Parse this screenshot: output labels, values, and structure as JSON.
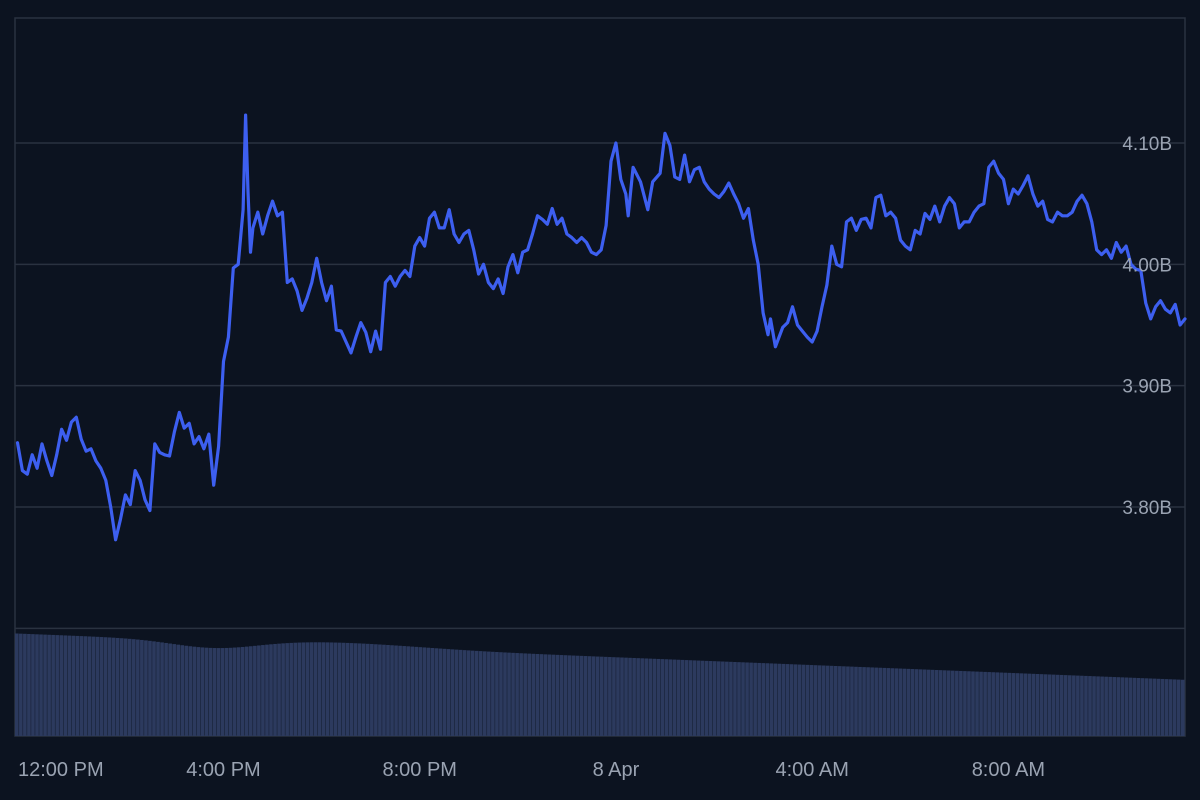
{
  "chart_data": {
    "type": "line",
    "title": "",
    "xlabel": "",
    "ylabel": "",
    "colors": {
      "background": "#0c1320",
      "line": "#3d5ff0",
      "volume": "#2c3a5e",
      "grid": "#2a3240",
      "axis_text": "#9aa3b2"
    },
    "grid": true,
    "y_axis_side": "right",
    "x_range_hours": [
      11.75,
      35.6
    ],
    "ylim": [
      3.7,
      4.2
    ],
    "y_ticks": [
      {
        "value": 3.8,
        "label": "3.80B"
      },
      {
        "value": 3.9,
        "label": "3.90B"
      },
      {
        "value": 4.0,
        "label": "4.00B"
      },
      {
        "value": 4.1,
        "label": "4.10B"
      }
    ],
    "x_ticks": [
      {
        "hours": 12,
        "label": "12:00 PM"
      },
      {
        "hours": 16,
        "label": "4:00 PM"
      },
      {
        "hours": 20,
        "label": "8:00 PM"
      },
      {
        "hours": 24,
        "label": "8 Apr"
      },
      {
        "hours": 28,
        "label": "4:00 AM"
      },
      {
        "hours": 32,
        "label": "8:00 AM"
      }
    ],
    "series": [
      {
        "unit": "B",
        "points": [
          [
            11.8,
            3.853
          ],
          [
            11.9,
            3.83
          ],
          [
            12.0,
            3.827
          ],
          [
            12.1,
            3.843
          ],
          [
            12.2,
            3.832
          ],
          [
            12.3,
            3.852
          ],
          [
            12.4,
            3.838
          ],
          [
            12.5,
            3.826
          ],
          [
            12.6,
            3.843
          ],
          [
            12.7,
            3.864
          ],
          [
            12.8,
            3.855
          ],
          [
            12.9,
            3.87
          ],
          [
            13.0,
            3.874
          ],
          [
            13.1,
            3.856
          ],
          [
            13.2,
            3.846
          ],
          [
            13.3,
            3.848
          ],
          [
            13.4,
            3.838
          ],
          [
            13.5,
            3.832
          ],
          [
            13.6,
            3.822
          ],
          [
            13.7,
            3.8
          ],
          [
            13.8,
            3.773
          ],
          [
            13.9,
            3.79
          ],
          [
            14.0,
            3.81
          ],
          [
            14.1,
            3.802
          ],
          [
            14.2,
            3.83
          ],
          [
            14.3,
            3.822
          ],
          [
            14.4,
            3.806
          ],
          [
            14.5,
            3.797
          ],
          [
            14.6,
            3.852
          ],
          [
            14.7,
            3.845
          ],
          [
            14.8,
            3.843
          ],
          [
            14.9,
            3.842
          ],
          [
            15.0,
            3.862
          ],
          [
            15.1,
            3.878
          ],
          [
            15.2,
            3.865
          ],
          [
            15.3,
            3.869
          ],
          [
            15.4,
            3.852
          ],
          [
            15.5,
            3.858
          ],
          [
            15.6,
            3.848
          ],
          [
            15.7,
            3.86
          ],
          [
            15.8,
            3.818
          ],
          [
            15.9,
            3.85
          ],
          [
            16.0,
            3.92
          ],
          [
            16.1,
            3.94
          ],
          [
            16.2,
            3.997
          ],
          [
            16.3,
            4.0
          ],
          [
            16.4,
            4.045
          ],
          [
            16.45,
            4.123
          ],
          [
            16.5,
            4.06
          ],
          [
            16.55,
            4.01
          ],
          [
            16.6,
            4.03
          ],
          [
            16.7,
            4.043
          ],
          [
            16.8,
            4.025
          ],
          [
            16.9,
            4.04
          ],
          [
            17.0,
            4.052
          ],
          [
            17.1,
            4.04
          ],
          [
            17.2,
            4.043
          ],
          [
            17.3,
            3.985
          ],
          [
            17.4,
            3.988
          ],
          [
            17.5,
            3.978
          ],
          [
            17.6,
            3.962
          ],
          [
            17.7,
            3.972
          ],
          [
            17.8,
            3.985
          ],
          [
            17.9,
            4.005
          ],
          [
            18.0,
            3.985
          ],
          [
            18.1,
            3.97
          ],
          [
            18.2,
            3.982
          ],
          [
            18.3,
            3.946
          ],
          [
            18.4,
            3.945
          ],
          [
            18.5,
            3.936
          ],
          [
            18.6,
            3.927
          ],
          [
            18.7,
            3.94
          ],
          [
            18.8,
            3.952
          ],
          [
            18.9,
            3.944
          ],
          [
            19.0,
            3.928
          ],
          [
            19.1,
            3.945
          ],
          [
            19.2,
            3.93
          ],
          [
            19.3,
            3.985
          ],
          [
            19.4,
            3.99
          ],
          [
            19.5,
            3.982
          ],
          [
            19.6,
            3.99
          ],
          [
            19.7,
            3.995
          ],
          [
            19.8,
            3.99
          ],
          [
            19.9,
            4.015
          ],
          [
            20.0,
            4.022
          ],
          [
            20.1,
            4.015
          ],
          [
            20.2,
            4.038
          ],
          [
            20.3,
            4.043
          ],
          [
            20.4,
            4.03
          ],
          [
            20.5,
            4.03
          ],
          [
            20.6,
            4.045
          ],
          [
            20.7,
            4.025
          ],
          [
            20.8,
            4.018
          ],
          [
            20.9,
            4.025
          ],
          [
            21.0,
            4.028
          ],
          [
            21.1,
            4.012
          ],
          [
            21.2,
            3.992
          ],
          [
            21.3,
            4.0
          ],
          [
            21.4,
            3.985
          ],
          [
            21.5,
            3.98
          ],
          [
            21.6,
            3.988
          ],
          [
            21.7,
            3.976
          ],
          [
            21.8,
            3.998
          ],
          [
            21.9,
            4.008
          ],
          [
            22.0,
            3.993
          ],
          [
            22.1,
            4.01
          ],
          [
            22.2,
            4.012
          ],
          [
            22.3,
            4.025
          ],
          [
            22.4,
            4.04
          ],
          [
            22.5,
            4.037
          ],
          [
            22.6,
            4.033
          ],
          [
            22.7,
            4.046
          ],
          [
            22.8,
            4.033
          ],
          [
            22.9,
            4.038
          ],
          [
            23.0,
            4.025
          ],
          [
            23.1,
            4.022
          ],
          [
            23.2,
            4.018
          ],
          [
            23.3,
            4.022
          ],
          [
            23.4,
            4.018
          ],
          [
            23.5,
            4.01
          ],
          [
            23.6,
            4.008
          ],
          [
            23.7,
            4.012
          ],
          [
            23.8,
            4.032
          ],
          [
            23.9,
            4.085
          ],
          [
            24.0,
            4.1
          ],
          [
            24.1,
            4.07
          ],
          [
            24.2,
            4.058
          ],
          [
            24.25,
            4.04
          ],
          [
            24.35,
            4.08
          ],
          [
            24.5,
            4.068
          ],
          [
            24.65,
            4.045
          ],
          [
            24.75,
            4.068
          ],
          [
            24.9,
            4.075
          ],
          [
            25.0,
            4.108
          ],
          [
            25.1,
            4.098
          ],
          [
            25.2,
            4.072
          ],
          [
            25.3,
            4.07
          ],
          [
            25.4,
            4.09
          ],
          [
            25.5,
            4.068
          ],
          [
            25.6,
            4.078
          ],
          [
            25.7,
            4.08
          ],
          [
            25.8,
            4.068
          ],
          [
            25.9,
            4.062
          ],
          [
            26.0,
            4.058
          ],
          [
            26.1,
            4.055
          ],
          [
            26.2,
            4.06
          ],
          [
            26.3,
            4.067
          ],
          [
            26.4,
            4.058
          ],
          [
            26.5,
            4.05
          ],
          [
            26.6,
            4.038
          ],
          [
            26.7,
            4.046
          ],
          [
            26.8,
            4.02
          ],
          [
            26.9,
            4.0
          ],
          [
            27.0,
            3.96
          ],
          [
            27.1,
            3.942
          ],
          [
            27.15,
            3.955
          ],
          [
            27.25,
            3.932
          ],
          [
            27.4,
            3.948
          ],
          [
            27.5,
            3.952
          ],
          [
            27.6,
            3.965
          ],
          [
            27.7,
            3.95
          ],
          [
            27.8,
            3.945
          ],
          [
            27.9,
            3.94
          ],
          [
            28.0,
            3.936
          ],
          [
            28.1,
            3.945
          ],
          [
            28.2,
            3.965
          ],
          [
            28.3,
            3.983
          ],
          [
            28.4,
            4.015
          ],
          [
            28.5,
            4.0
          ],
          [
            28.6,
            3.998
          ],
          [
            28.7,
            4.035
          ],
          [
            28.8,
            4.038
          ],
          [
            28.9,
            4.028
          ],
          [
            29.0,
            4.037
          ],
          [
            29.1,
            4.038
          ],
          [
            29.2,
            4.03
          ],
          [
            29.3,
            4.055
          ],
          [
            29.4,
            4.057
          ],
          [
            29.5,
            4.04
          ],
          [
            29.6,
            4.043
          ],
          [
            29.7,
            4.038
          ],
          [
            29.8,
            4.02
          ],
          [
            29.9,
            4.015
          ],
          [
            30.0,
            4.012
          ],
          [
            30.1,
            4.028
          ],
          [
            30.2,
            4.025
          ],
          [
            30.3,
            4.042
          ],
          [
            30.4,
            4.037
          ],
          [
            30.5,
            4.048
          ],
          [
            30.6,
            4.035
          ],
          [
            30.7,
            4.048
          ],
          [
            30.8,
            4.055
          ],
          [
            30.9,
            4.05
          ],
          [
            31.0,
            4.03
          ],
          [
            31.1,
            4.035
          ],
          [
            31.2,
            4.035
          ],
          [
            31.3,
            4.043
          ],
          [
            31.4,
            4.048
          ],
          [
            31.5,
            4.05
          ],
          [
            31.6,
            4.08
          ],
          [
            31.7,
            4.085
          ],
          [
            31.8,
            4.075
          ],
          [
            31.9,
            4.07
          ],
          [
            32.0,
            4.05
          ],
          [
            32.1,
            4.062
          ],
          [
            32.2,
            4.058
          ],
          [
            32.3,
            4.065
          ],
          [
            32.4,
            4.073
          ],
          [
            32.5,
            4.058
          ],
          [
            32.6,
            4.048
          ],
          [
            32.7,
            4.052
          ],
          [
            32.8,
            4.037
          ],
          [
            32.9,
            4.035
          ],
          [
            33.0,
            4.043
          ],
          [
            33.1,
            4.04
          ],
          [
            33.2,
            4.04
          ],
          [
            33.3,
            4.043
          ],
          [
            33.4,
            4.052
          ],
          [
            33.5,
            4.057
          ],
          [
            33.6,
            4.05
          ],
          [
            33.7,
            4.035
          ],
          [
            33.8,
            4.012
          ],
          [
            33.9,
            4.008
          ],
          [
            34.0,
            4.012
          ],
          [
            34.1,
            4.005
          ],
          [
            34.2,
            4.018
          ],
          [
            34.3,
            4.01
          ],
          [
            34.4,
            4.015
          ],
          [
            34.5,
            4.0
          ],
          [
            34.6,
            3.996
          ],
          [
            34.7,
            3.995
          ],
          [
            34.8,
            3.968
          ],
          [
            34.9,
            3.955
          ],
          [
            35.0,
            3.965
          ],
          [
            35.1,
            3.97
          ],
          [
            35.2,
            3.963
          ],
          [
            35.3,
            3.96
          ],
          [
            35.4,
            3.967
          ],
          [
            35.5,
            3.95
          ],
          [
            35.6,
            3.955
          ]
        ]
      }
    ],
    "volume": {
      "type": "bar",
      "start_level": 0.82,
      "end_level": 0.45,
      "hump_center_hours": 18.5,
      "hump_level": 0.78
    }
  }
}
